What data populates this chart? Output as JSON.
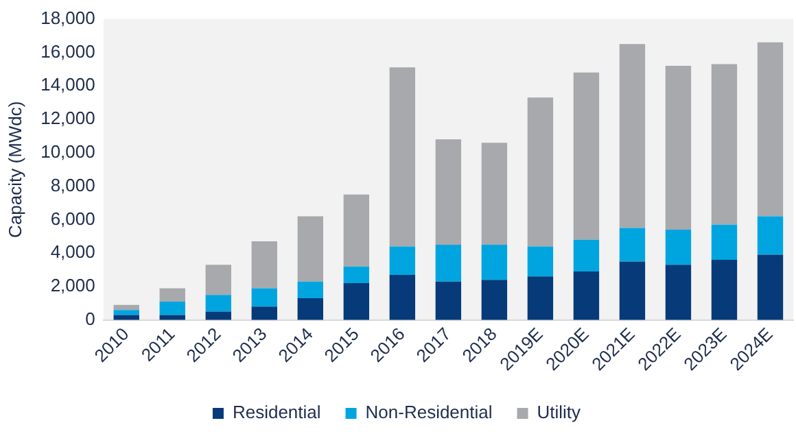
{
  "chart_data": {
    "type": "bar",
    "ylabel": "Capacity (MWdc)",
    "categories": [
      "2010",
      "2011",
      "2012",
      "2013",
      "2014",
      "2015",
      "2016",
      "2017",
      "2018",
      "2019E",
      "2020E",
      "2021E",
      "2022E",
      "2023E",
      "2024E"
    ],
    "series": [
      {
        "name": "Residential",
        "color": "#063a78",
        "values": [
          300,
          300,
          500,
          800,
          1300,
          2200,
          2700,
          2300,
          2400,
          2600,
          2900,
          3500,
          3300,
          3600,
          3900
        ]
      },
      {
        "name": "Non-Residential",
        "color": "#00a5e0",
        "values": [
          300,
          800,
          1000,
          1100,
          1000,
          1000,
          1700,
          2200,
          2100,
          1800,
          1900,
          2000,
          2100,
          2100,
          2300
        ]
      },
      {
        "name": "Utility",
        "color": "#a7a9ac",
        "values": [
          300,
          800,
          1800,
          2800,
          3900,
          4300,
          10700,
          6300,
          6100,
          8900,
          10000,
          11000,
          9800,
          9600,
          10400
        ]
      }
    ],
    "stacked": true,
    "ylim": [
      0,
      18000
    ],
    "yticks": [
      0,
      {
        "value": 2000,
        "label": "2,000"
      },
      {
        "value": 4000,
        "label": "4,000"
      },
      {
        "value": 6000,
        "label": "6,000"
      },
      {
        "value": 8000,
        "label": "8,000"
      },
      {
        "value": 10000,
        "label": "10,000"
      },
      {
        "value": 12000,
        "label": "12,000"
      },
      {
        "value": 14000,
        "label": "14,000"
      },
      {
        "value": 16000,
        "label": "16,000"
      },
      {
        "value": 18000,
        "label": "18,000"
      }
    ],
    "grid": false,
    "legend": "bottom"
  }
}
